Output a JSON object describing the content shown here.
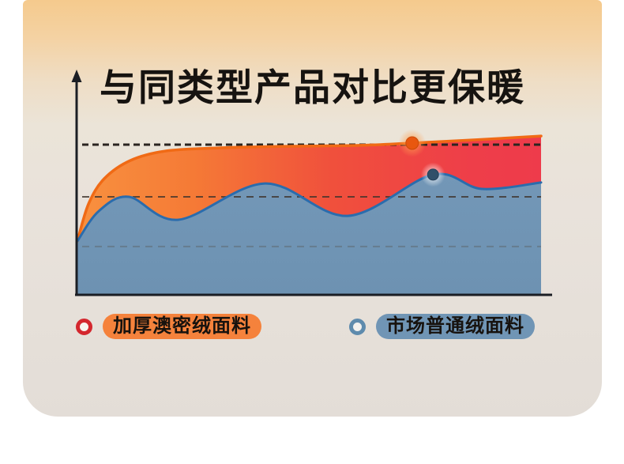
{
  "title": "与同类型产品对比更保暖",
  "title_color": "#161310",
  "card": {
    "bg_top": "#f5ca8d",
    "bg_bottom": "#e3ddd7",
    "page_bg": "#ffffff"
  },
  "axis_color": "#1b1e24",
  "legend": [
    {
      "label": "加厚澳密绒面料",
      "ring_color": "#d4272e",
      "ring_center": "#f7f4ef",
      "pill_color": "#f5823c"
    },
    {
      "label": "市场普通绒面料",
      "ring_color": "#5e8bad",
      "ring_center": "#f2f1ee",
      "pill_color": "#7095b5"
    }
  ],
  "chart_data": {
    "type": "area",
    "title": "与同类型产品对比更保暖",
    "xlabel": "",
    "ylabel": "",
    "x_range_pct": [
      0,
      100
    ],
    "warmth_range_pct": [
      0,
      100
    ],
    "grid": "dashed-horizontal-guides",
    "legend_position": "bottom",
    "guides": [
      {
        "y": 85.2,
        "color": "#2b2520",
        "width": 3,
        "dash": "8 5",
        "opacity": 1
      },
      {
        "y": 55.6,
        "color": "#3f342c",
        "width": 2,
        "dash": "9 7",
        "opacity": 0.8
      },
      {
        "y": 27.4,
        "color": "#55504a",
        "width": 2,
        "dash": "9 7",
        "opacity": 0.35
      }
    ],
    "series": [
      {
        "name": "加厚澳密绒面料",
        "stroke": "#f06a15",
        "stroke_width": 3.5,
        "fill_direction": "horizontal",
        "fill_gradient": [
          {
            "offset": "0%",
            "color": "#f8913f"
          },
          {
            "offset": "25%",
            "color": "#f57a36"
          },
          {
            "offset": "55%",
            "color": "#f0503c"
          },
          {
            "offset": "85%",
            "color": "#ee3e49"
          },
          {
            "offset": "100%",
            "color": "#ee3b4b"
          }
        ],
        "points": [
          [
            0,
            30.5
          ],
          [
            2.4,
            51.6
          ],
          [
            5.8,
            65.9
          ],
          [
            11.4,
            76.2
          ],
          [
            19.1,
            81.6
          ],
          [
            31.0,
            83.4
          ],
          [
            46.3,
            84.3
          ],
          [
            60.8,
            84.8
          ],
          [
            72.2,
            86.1
          ],
          [
            85.5,
            87.9
          ],
          [
            100,
            90.1
          ]
        ],
        "marker": {
          "x": 72.2,
          "y": 86.1,
          "fill": "#e8570f",
          "ring": "#c94a08",
          "glow": "#ffa050",
          "radius": 8
        }
      },
      {
        "name": "市场普通绒面料",
        "stroke": "#2a6cad",
        "stroke_width": 3,
        "fill_direction": "vertical",
        "fill_gradient": [
          {
            "offset": "0%",
            "color": "#7397b7"
          },
          {
            "offset": "100%",
            "color": "#6d92b2"
          }
        ],
        "points": [
          [
            0,
            30.5
          ],
          [
            4.6,
            47.5
          ],
          [
            11.1,
            55.6
          ],
          [
            21.8,
            42.6
          ],
          [
            40.5,
            63.2
          ],
          [
            58.3,
            44.8
          ],
          [
            76.7,
            68.2
          ],
          [
            87.2,
            60.1
          ],
          [
            100,
            63.7
          ]
        ],
        "marker": {
          "x": 76.7,
          "y": 68.2,
          "fill": "#30506a",
          "ring": "#24405a",
          "glow": "#ffffff",
          "radius": 7
        }
      }
    ]
  }
}
